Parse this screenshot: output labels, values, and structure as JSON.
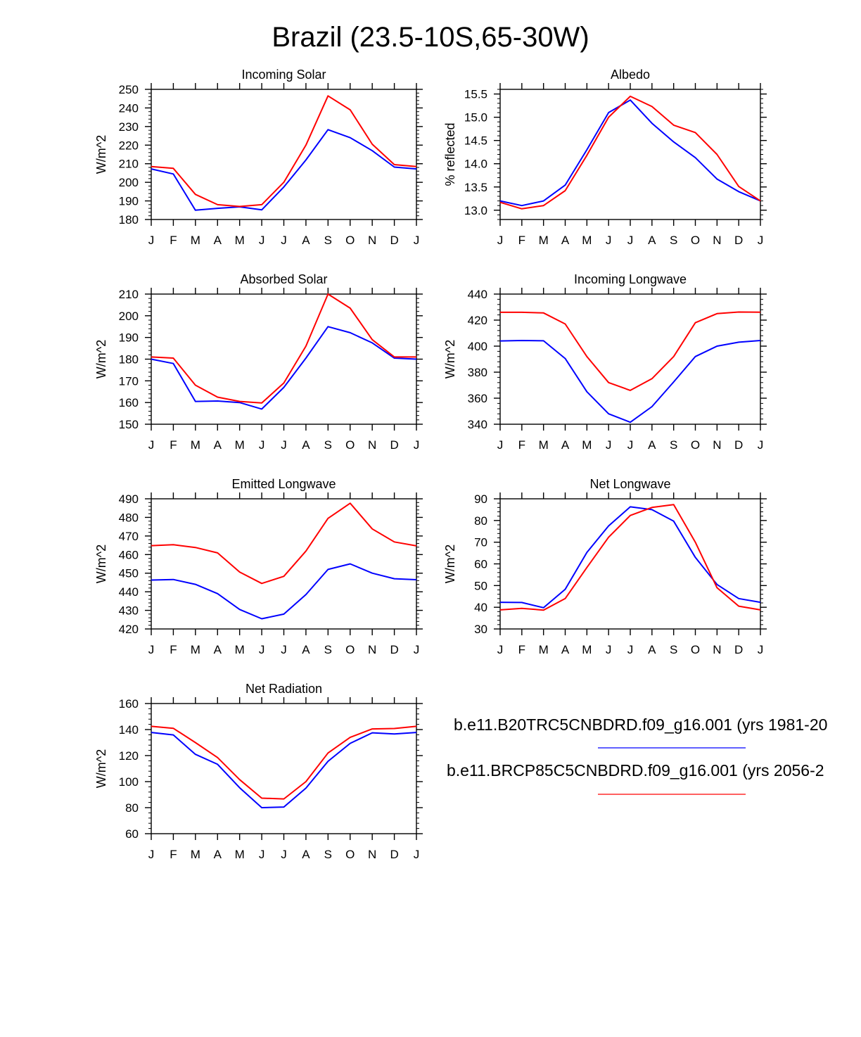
{
  "page_title": "Brazil (23.5-10S,65-30W)",
  "colors": {
    "series1": "#0000ff",
    "series2": "#ff0000",
    "axis": "#000000"
  },
  "legend": [
    {
      "label": "b.e11.B20TRC5CNBDRD.f09_g16.001 (yrs 1981-20",
      "color": "#0000ff"
    },
    {
      "label": "b.e11.BRCP85C5CNBDRD.f09_g16.001 (yrs 2056-2",
      "color": "#ff0000"
    }
  ],
  "chart_data": [
    {
      "type": "line",
      "title": "Incoming Solar",
      "ylabel": "W/m^2",
      "categories": [
        "J",
        "F",
        "M",
        "A",
        "M",
        "J",
        "J",
        "A",
        "S",
        "O",
        "N",
        "D",
        "J"
      ],
      "ylim": [
        180,
        250
      ],
      "yticks": [
        180,
        190,
        200,
        210,
        220,
        230,
        240,
        250
      ],
      "ytick_labels": [
        "180",
        "190",
        "200",
        "210",
        "220",
        "230",
        "240",
        "250"
      ],
      "series": [
        {
          "name": "b.e11.B20TRC5CNBDRD.f09_g16.001",
          "color": "#0000ff",
          "values": [
            207.2,
            204.5,
            185.0,
            186.0,
            186.8,
            185.2,
            197.5,
            212.0,
            228.3,
            224.0,
            217.0,
            208.2,
            207.2
          ]
        },
        {
          "name": "b.e11.BRCP85C5CNBDRD.f09_g16.001",
          "color": "#ff0000",
          "values": [
            208.5,
            207.5,
            193.5,
            188.0,
            187.0,
            188.0,
            200.0,
            220.0,
            246.5,
            239.0,
            220.5,
            209.5,
            208.5
          ]
        }
      ]
    },
    {
      "type": "line",
      "title": "Albedo",
      "ylabel": "% reflected",
      "categories": [
        "J",
        "F",
        "M",
        "A",
        "M",
        "J",
        "J",
        "A",
        "S",
        "O",
        "N",
        "D",
        "J"
      ],
      "ylim": [
        12.8,
        15.6
      ],
      "yticks": [
        13.0,
        13.5,
        14.0,
        14.5,
        15.0,
        15.5
      ],
      "ytick_labels": [
        "13.0",
        "13.5",
        "14.0",
        "14.5",
        "15.0",
        "15.5"
      ],
      "series": [
        {
          "name": "b.e11.B20TRC5CNBDRD.f09_g16.001",
          "color": "#0000ff",
          "values": [
            13.2,
            13.1,
            13.2,
            13.54,
            14.3,
            15.1,
            15.37,
            14.87,
            14.47,
            14.13,
            13.67,
            13.4,
            13.2
          ]
        },
        {
          "name": "b.e11.BRCP85C5CNBDRD.f09_g16.001",
          "color": "#ff0000",
          "values": [
            13.17,
            13.03,
            13.1,
            13.42,
            14.18,
            15.0,
            15.45,
            15.23,
            14.83,
            14.67,
            14.2,
            13.51,
            13.2
          ]
        }
      ]
    },
    {
      "type": "line",
      "title": "Absorbed Solar",
      "ylabel": "W/m^2",
      "categories": [
        "J",
        "F",
        "M",
        "A",
        "M",
        "J",
        "J",
        "A",
        "S",
        "O",
        "N",
        "D",
        "J"
      ],
      "ylim": [
        150,
        210
      ],
      "yticks": [
        150,
        160,
        170,
        180,
        190,
        200,
        210
      ],
      "ytick_labels": [
        "150",
        "160",
        "170",
        "180",
        "190",
        "200",
        "210"
      ],
      "series": [
        {
          "name": "b.e11.B20TRC5CNBDRD.f09_g16.001",
          "color": "#0000ff",
          "values": [
            180.0,
            178.0,
            160.5,
            160.7,
            160.0,
            157.0,
            167.0,
            180.5,
            195.0,
            192.2,
            187.5,
            180.5,
            180.0
          ]
        },
        {
          "name": "b.e11.BRCP85C5CNBDRD.f09_g16.001",
          "color": "#ff0000",
          "values": [
            181.0,
            180.5,
            168.0,
            162.5,
            160.5,
            159.8,
            169.0,
            186.0,
            210.0,
            203.5,
            189.0,
            181.0,
            181.0
          ]
        }
      ]
    },
    {
      "type": "line",
      "title": "Incoming Longwave",
      "ylabel": "W/m^2",
      "categories": [
        "J",
        "F",
        "M",
        "A",
        "M",
        "J",
        "J",
        "A",
        "S",
        "O",
        "N",
        "D",
        "J"
      ],
      "ylim": [
        340,
        440
      ],
      "yticks": [
        340,
        360,
        380,
        400,
        420,
        440
      ],
      "ytick_labels": [
        "340",
        "360",
        "380",
        "400",
        "420",
        "440"
      ],
      "series": [
        {
          "name": "b.e11.B20TRC5CNBDRD.f09_g16.001",
          "color": "#0000ff",
          "values": [
            404.0,
            404.3,
            404.1,
            390.5,
            365.0,
            348.0,
            341.5,
            353.5,
            372.5,
            392.0,
            400.0,
            403.0,
            404.3
          ]
        },
        {
          "name": "b.e11.BRCP85C5CNBDRD.f09_g16.001",
          "color": "#ff0000",
          "values": [
            426.0,
            426.0,
            425.5,
            417.0,
            392.0,
            372.0,
            366.0,
            375.0,
            392.0,
            418.0,
            425.0,
            426.2,
            426.1
          ]
        }
      ]
    },
    {
      "type": "line",
      "title": "Emitted Longwave",
      "ylabel": "W/m^2",
      "categories": [
        "J",
        "F",
        "M",
        "A",
        "M",
        "J",
        "J",
        "A",
        "S",
        "O",
        "N",
        "D",
        "J"
      ],
      "ylim": [
        420,
        490
      ],
      "yticks": [
        420,
        430,
        440,
        450,
        460,
        470,
        480,
        490
      ],
      "ytick_labels": [
        "420",
        "430",
        "440",
        "450",
        "460",
        "470",
        "480",
        "490"
      ],
      "series": [
        {
          "name": "b.e11.B20TRC5CNBDRD.f09_g16.001",
          "color": "#0000ff",
          "values": [
            446.3,
            446.6,
            444.0,
            439.0,
            430.5,
            425.5,
            428.0,
            438.5,
            452.0,
            455.0,
            450.0,
            447.0,
            446.5
          ]
        },
        {
          "name": "b.e11.BRCP85C5CNBDRD.f09_g16.001",
          "color": "#ff0000",
          "values": [
            464.8,
            465.3,
            463.8,
            460.9,
            450.6,
            444.5,
            448.3,
            461.9,
            479.5,
            487.6,
            473.8,
            466.8,
            464.7
          ]
        }
      ]
    },
    {
      "type": "line",
      "title": "Net Longwave",
      "ylabel": "W/m^2",
      "categories": [
        "J",
        "F",
        "M",
        "A",
        "M",
        "J",
        "J",
        "A",
        "S",
        "O",
        "N",
        "D",
        "J"
      ],
      "ylim": [
        30,
        90
      ],
      "yticks": [
        30,
        40,
        50,
        60,
        70,
        80,
        90
      ],
      "ytick_labels": [
        "30",
        "40",
        "50",
        "60",
        "70",
        "80",
        "90"
      ],
      "series": [
        {
          "name": "b.e11.B20TRC5CNBDRD.f09_g16.001",
          "color": "#0000ff",
          "values": [
            42.3,
            42.2,
            39.8,
            48.3,
            65.3,
            77.5,
            86.3,
            85.0,
            79.7,
            63.0,
            50.5,
            44.0,
            42.3
          ]
        },
        {
          "name": "b.e11.BRCP85C5CNBDRD.f09_g16.001",
          "color": "#ff0000",
          "values": [
            38.8,
            39.5,
            38.7,
            44.0,
            58.3,
            72.3,
            82.3,
            86.0,
            87.3,
            70.0,
            49.0,
            40.5,
            38.8
          ]
        }
      ]
    },
    {
      "type": "line",
      "title": "Net Radiation",
      "ylabel": "W/m^2",
      "categories": [
        "J",
        "F",
        "M",
        "A",
        "M",
        "J",
        "J",
        "A",
        "S",
        "O",
        "N",
        "D",
        "J"
      ],
      "ylim": [
        60,
        160
      ],
      "yticks": [
        60,
        80,
        100,
        120,
        140,
        160
      ],
      "ytick_labels": [
        "60",
        "80",
        "100",
        "120",
        "140",
        "160"
      ],
      "series": [
        {
          "name": "b.e11.B20TRC5CNBDRD.f09_g16.001",
          "color": "#0000ff",
          "values": [
            137.8,
            135.9,
            121.0,
            113.3,
            95.3,
            80.0,
            80.5,
            95.0,
            115.6,
            129.4,
            137.5,
            136.6,
            137.8
          ]
        },
        {
          "name": "b.e11.BRCP85C5CNBDRD.f09_g16.001",
          "color": "#ff0000",
          "values": [
            142.5,
            141.0,
            130.0,
            118.5,
            101.5,
            87.3,
            86.7,
            100.0,
            122.0,
            134.0,
            140.5,
            140.8,
            142.5
          ]
        }
      ]
    }
  ]
}
